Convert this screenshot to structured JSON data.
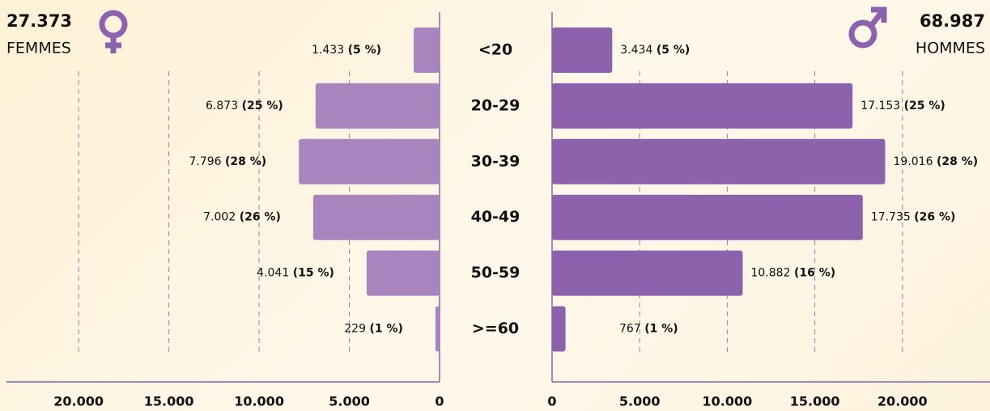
{
  "chart_data": {
    "type": "pyramid",
    "categories": [
      "<20",
      "20-29",
      "30-39",
      "40-49",
      "50-59",
      ">=60"
    ],
    "series": [
      {
        "name": "FEMMES",
        "total": "27.373",
        "color": "#a985bd",
        "values": [
          1433,
          6873,
          7796,
          7002,
          4041,
          229
        ],
        "value_labels": [
          "1.433",
          "6.873",
          "7.796",
          "7.002",
          "4.041",
          "229"
        ],
        "share_labels": [
          "(5 %)",
          "(25 %)",
          "(28 %)",
          "(26 %)",
          "(15 %)",
          "(1 %)"
        ],
        "xlim": [
          0,
          24000
        ],
        "xticks": [
          0,
          {
            "value": 5000,
            "label": "5.000"
          },
          {
            "value": 10000,
            "label": "10.000"
          },
          {
            "value": 15000,
            "label": "15.000"
          },
          {
            "value": 20000,
            "label": "20.000"
          }
        ]
      },
      {
        "name": "HOMMES",
        "total": "68.987",
        "color": "#8b62ab",
        "values": [
          3434,
          17153,
          19016,
          17735,
          10882,
          767
        ],
        "value_labels": [
          "3.434",
          "17.153",
          "19.016",
          "17.735",
          "10.882",
          "767"
        ],
        "share_labels": [
          "(5 %)",
          "(25 %)",
          "(28 %)",
          "(26 %)",
          "(16 %)",
          "(1 %)"
        ],
        "xlim": [
          0,
          25000
        ],
        "xticks": [
          0,
          {
            "value": 5000,
            "label": "5.000"
          },
          {
            "value": 10000,
            "label": "10.000"
          },
          {
            "value": 15000,
            "label": "15.000"
          },
          {
            "value": 20000,
            "label": "20.000"
          }
        ]
      }
    ],
    "grid": true
  }
}
